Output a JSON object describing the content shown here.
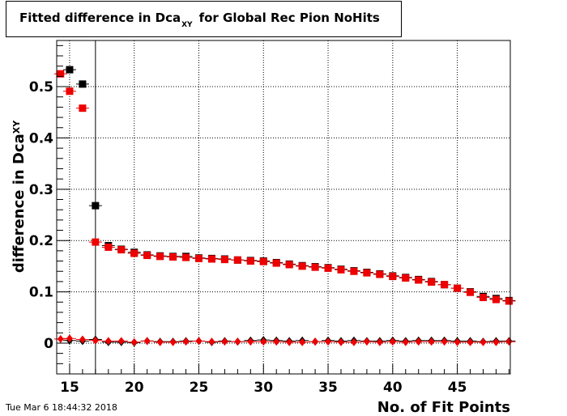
{
  "title": {
    "main": "Fitted difference in Dca",
    "subscript": "XY",
    "suffix": "for Global Rec Pion NoHits"
  },
  "timestamp": "Tue Mar  6 18:44:32 2018",
  "colors": {
    "black": "#000000",
    "red": "#ee0000",
    "grid": "#000000"
  },
  "chart_data": {
    "type": "scatter",
    "xlabel": "No. of Fit Points",
    "ylabel_main": "difference in Dca",
    "ylabel_sub": "XY",
    "xlim": [
      14,
      49.1
    ],
    "ylim": [
      -0.06,
      0.59
    ],
    "xticks": [
      15,
      20,
      25,
      30,
      35,
      40,
      45
    ],
    "yticks": [
      0,
      0.1,
      0.2,
      0.3,
      0.4,
      0.5
    ],
    "grid": true,
    "vline_x": 17,
    "series": [
      {
        "marker": "square",
        "color": "#000000",
        "points": [
          [
            15,
            0.533
          ],
          [
            16,
            0.505
          ],
          [
            17,
            0.268
          ],
          [
            18,
            0.19
          ],
          [
            19,
            0.183
          ],
          [
            20,
            0.177
          ],
          [
            21,
            0.172
          ],
          [
            22,
            0.17
          ],
          [
            23,
            0.169
          ],
          [
            24,
            0.169
          ],
          [
            25,
            0.166
          ],
          [
            26,
            0.165
          ],
          [
            27,
            0.164
          ],
          [
            28,
            0.162
          ],
          [
            29,
            0.161
          ],
          [
            30,
            0.16
          ],
          [
            31,
            0.157
          ],
          [
            32,
            0.154
          ],
          [
            33,
            0.151
          ],
          [
            34,
            0.149
          ],
          [
            35,
            0.147
          ],
          [
            36,
            0.144
          ],
          [
            37,
            0.141
          ],
          [
            38,
            0.138
          ],
          [
            39,
            0.135
          ],
          [
            40,
            0.131
          ],
          [
            41,
            0.128
          ],
          [
            42,
            0.124
          ],
          [
            43,
            0.12
          ],
          [
            44,
            0.114
          ],
          [
            45,
            0.107
          ],
          [
            46,
            0.1
          ],
          [
            47,
            0.091
          ],
          [
            48,
            0.087
          ],
          [
            49,
            0.083
          ]
        ]
      },
      {
        "marker": "square",
        "color": "#ee0000",
        "points": [
          [
            14.3,
            0.525
          ],
          [
            15,
            0.491
          ],
          [
            16,
            0.458
          ],
          [
            17,
            0.197
          ],
          [
            18,
            0.187
          ],
          [
            19,
            0.182
          ],
          [
            20,
            0.175
          ],
          [
            21,
            0.171
          ],
          [
            22,
            0.169
          ],
          [
            23,
            0.168
          ],
          [
            24,
            0.167
          ],
          [
            25,
            0.165
          ],
          [
            26,
            0.164
          ],
          [
            27,
            0.163
          ],
          [
            28,
            0.162
          ],
          [
            29,
            0.16
          ],
          [
            30,
            0.159
          ],
          [
            31,
            0.156
          ],
          [
            32,
            0.153
          ],
          [
            33,
            0.15
          ],
          [
            34,
            0.148
          ],
          [
            35,
            0.146
          ],
          [
            36,
            0.143
          ],
          [
            37,
            0.14
          ],
          [
            38,
            0.137
          ],
          [
            39,
            0.134
          ],
          [
            40,
            0.13
          ],
          [
            41,
            0.127
          ],
          [
            42,
            0.123
          ],
          [
            43,
            0.119
          ],
          [
            44,
            0.114
          ],
          [
            45,
            0.107
          ],
          [
            46,
            0.099
          ],
          [
            47,
            0.089
          ],
          [
            48,
            0.085
          ],
          [
            49,
            0.082
          ]
        ]
      },
      {
        "marker": "diamond",
        "color": "#000000",
        "points": [
          [
            15,
            0.005
          ],
          [
            16,
            0.004
          ],
          [
            17,
            0.007
          ],
          [
            18,
            0.002
          ],
          [
            19,
            0.002
          ],
          [
            20,
            0.001
          ],
          [
            21,
            0.004
          ],
          [
            22,
            0.003
          ],
          [
            23,
            0.003
          ],
          [
            24,
            0.004
          ],
          [
            25,
            0.004
          ],
          [
            26,
            0.002
          ],
          [
            27,
            0.004
          ],
          [
            28,
            0.003
          ],
          [
            29,
            0.005
          ],
          [
            30,
            0.006
          ],
          [
            31,
            0.005
          ],
          [
            32,
            0.004
          ],
          [
            33,
            0.005
          ],
          [
            34,
            0.003
          ],
          [
            35,
            0.005
          ],
          [
            36,
            0.004
          ],
          [
            37,
            0.005
          ],
          [
            38,
            0.004
          ],
          [
            39,
            0.004
          ],
          [
            40,
            0.005
          ],
          [
            41,
            0.004
          ],
          [
            42,
            0.005
          ],
          [
            43,
            0.005
          ],
          [
            44,
            0.005
          ],
          [
            45,
            0.004
          ],
          [
            46,
            0.004
          ],
          [
            47,
            0.003
          ],
          [
            48,
            0.004
          ],
          [
            49,
            0.004
          ]
        ]
      },
      {
        "marker": "diamond",
        "color": "#ee0000",
        "points": [
          [
            14.3,
            0.008
          ],
          [
            15,
            0.009
          ],
          [
            16,
            0.007
          ],
          [
            17,
            0.005
          ],
          [
            18,
            0.004
          ],
          [
            19,
            0.004
          ],
          [
            20,
            0.002
          ],
          [
            21,
            0.004
          ],
          [
            22,
            0.002
          ],
          [
            23,
            0.002
          ],
          [
            24,
            0.003
          ],
          [
            25,
            0.004
          ],
          [
            26,
            0.003
          ],
          [
            27,
            0.003
          ],
          [
            28,
            0.003
          ],
          [
            29,
            0.003
          ],
          [
            30,
            0.003
          ],
          [
            31,
            0.003
          ],
          [
            32,
            0.002
          ],
          [
            33,
            0.002
          ],
          [
            34,
            0.003
          ],
          [
            35,
            0.003
          ],
          [
            36,
            0.002
          ],
          [
            37,
            0.002
          ],
          [
            38,
            0.003
          ],
          [
            39,
            0.002
          ],
          [
            40,
            0.003
          ],
          [
            41,
            0.002
          ],
          [
            42,
            0.003
          ],
          [
            43,
            0.003
          ],
          [
            44,
            0.003
          ],
          [
            45,
            0.002
          ],
          [
            46,
            0.002
          ],
          [
            47,
            0.002
          ],
          [
            48,
            0.002
          ],
          [
            49,
            0.003
          ]
        ]
      }
    ]
  }
}
